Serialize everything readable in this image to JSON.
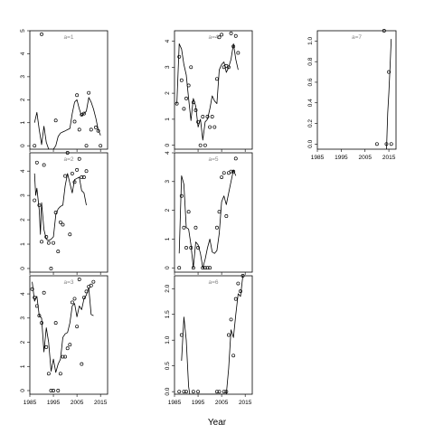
{
  "chart_data": {
    "type": "scatter",
    "xlabel": "Year",
    "xlim": [
      1985,
      2018
    ],
    "x_ticks": [
      1985,
      1995,
      2005,
      2015
    ],
    "x_tick_labels": [
      "1985",
      "1995",
      "2005",
      "2015"
    ],
    "panels": [
      {
        "label": "a=1",
        "ylim": [
          -0.15,
          5.0
        ],
        "y_ticks": [
          0,
          1,
          2,
          3,
          4,
          5
        ],
        "points": [
          [
            1987,
            0
          ],
          [
            1990,
            4.85
          ],
          [
            1996,
            1.1
          ],
          [
            2004,
            1.05
          ],
          [
            2005,
            2.2
          ],
          [
            2006,
            0.7
          ],
          [
            2007,
            1.35
          ],
          [
            2008,
            1.4
          ],
          [
            2009,
            0
          ],
          [
            2010,
            2.3
          ],
          [
            2011,
            0.7
          ],
          [
            2013,
            0.8
          ],
          [
            2014,
            0.65
          ],
          [
            2015,
            0
          ]
        ],
        "line": [
          [
            1987,
            1.0
          ],
          [
            1988,
            1.45
          ],
          [
            1989,
            0.7
          ],
          [
            1990,
            0.05
          ],
          [
            1991,
            0.85
          ],
          [
            1992,
            0.15
          ],
          [
            1993,
            -0.15
          ],
          [
            1994,
            -0.15
          ],
          [
            1995,
            -0.15
          ],
          [
            1996,
            0.0
          ],
          [
            1997,
            0.4
          ],
          [
            1998,
            0.55
          ],
          [
            1999,
            0.6
          ],
          [
            2000,
            0.65
          ],
          [
            2001,
            0.7
          ],
          [
            2002,
            0.75
          ],
          [
            2003,
            1.4
          ],
          [
            2004,
            1.9
          ],
          [
            2005,
            2.0
          ],
          [
            2006,
            1.6
          ],
          [
            2007,
            1.3
          ],
          [
            2008,
            1.4
          ],
          [
            2009,
            1.5
          ],
          [
            2010,
            2.1
          ],
          [
            2011,
            1.9
          ],
          [
            2012,
            1.6
          ],
          [
            2013,
            1.2
          ],
          [
            2014,
            0.7
          ],
          [
            2015,
            0.45
          ]
        ]
      },
      {
        "label": "a=2",
        "ylim": [
          -0.15,
          4.75
        ],
        "y_ticks": [
          0,
          1,
          2,
          3,
          4
        ],
        "points": [
          [
            1987,
            2.8
          ],
          [
            1988,
            4.35
          ],
          [
            1989,
            2.6
          ],
          [
            1990,
            1.1
          ],
          [
            1991,
            4.25
          ],
          [
            1992,
            1.3
          ],
          [
            1993,
            1.05
          ],
          [
            1994,
            0
          ],
          [
            1995,
            1.05
          ],
          [
            1996,
            2.3
          ],
          [
            1997,
            0.7
          ],
          [
            1998,
            1.9
          ],
          [
            1999,
            1.8
          ],
          [
            2000,
            3.8
          ],
          [
            2001,
            4.75
          ],
          [
            2002,
            1.4
          ],
          [
            2003,
            3.9
          ],
          [
            2004,
            3.55
          ],
          [
            2005,
            4.05
          ],
          [
            2006,
            4.5
          ],
          [
            2007,
            3.75
          ],
          [
            2008,
            3.75
          ],
          [
            2009,
            4.0
          ]
        ],
        "line": [
          [
            1987,
            3.9
          ],
          [
            1987.5,
            3.0
          ],
          [
            1988,
            3.3
          ],
          [
            1989,
            2.4
          ],
          [
            1989.5,
            1.4
          ],
          [
            1990,
            2.7
          ],
          [
            1991,
            1.6
          ],
          [
            1992,
            1.2
          ],
          [
            1993,
            1.15
          ],
          [
            1994,
            1.2
          ],
          [
            1995,
            1.3
          ],
          [
            1996,
            2.2
          ],
          [
            1997,
            2.45
          ],
          [
            1998,
            2.55
          ],
          [
            1999,
            2.6
          ],
          [
            2000,
            3.4
          ],
          [
            2001,
            3.9
          ],
          [
            2002,
            3.5
          ],
          [
            2003,
            3.1
          ],
          [
            2004,
            3.65
          ],
          [
            2005,
            3.7
          ],
          [
            2006,
            3.75
          ],
          [
            2007,
            3.2
          ],
          [
            2008,
            3.1
          ],
          [
            2009,
            2.6
          ]
        ]
      },
      {
        "label": "a=3",
        "ylim": [
          -0.15,
          4.75
        ],
        "y_ticks": [
          0,
          1,
          2,
          3,
          4
        ],
        "points": [
          [
            1986,
            4.2
          ],
          [
            1987,
            3.85
          ],
          [
            1988,
            3.5
          ],
          [
            1989,
            3.1
          ],
          [
            1990,
            2.8
          ],
          [
            1991,
            4.05
          ],
          [
            1992,
            1.8
          ],
          [
            1993,
            0.7
          ],
          [
            1994,
            0
          ],
          [
            1995,
            0
          ],
          [
            1996,
            2.8
          ],
          [
            1997,
            0
          ],
          [
            1998,
            0.7
          ],
          [
            1999,
            1.4
          ],
          [
            2000,
            1.4
          ],
          [
            2001,
            1.75
          ],
          [
            2002,
            1.9
          ],
          [
            2003,
            3.65
          ],
          [
            2004,
            3.8
          ],
          [
            2005,
            2.65
          ],
          [
            2006,
            4.6
          ],
          [
            2007,
            1.1
          ],
          [
            2008,
            3.85
          ],
          [
            2009,
            4.1
          ],
          [
            2010,
            4.3
          ],
          [
            2011,
            4.35
          ],
          [
            2012,
            4.5
          ]
        ],
        "line": [
          [
            1986,
            4.5
          ],
          [
            1987,
            3.7
          ],
          [
            1988,
            3.9
          ],
          [
            1989,
            3.1
          ],
          [
            1990,
            3.0
          ],
          [
            1991,
            1.6
          ],
          [
            1992,
            2.6
          ],
          [
            1993,
            2.0
          ],
          [
            1994,
            0.8
          ],
          [
            1995,
            1.3
          ],
          [
            1996,
            0.75
          ],
          [
            1997,
            1.1
          ],
          [
            1998,
            1.3
          ],
          [
            1999,
            2.2
          ],
          [
            2000,
            2.35
          ],
          [
            2001,
            2.4
          ],
          [
            2002,
            2.8
          ],
          [
            2003,
            3.5
          ],
          [
            2004,
            3.6
          ],
          [
            2005,
            3.05
          ],
          [
            2006,
            3.5
          ],
          [
            2007,
            3.35
          ],
          [
            2008,
            3.8
          ],
          [
            2009,
            3.95
          ],
          [
            2010,
            4.25
          ],
          [
            2011,
            3.15
          ],
          [
            2012,
            3.1
          ]
        ]
      },
      {
        "label": "a=4",
        "ylim": [
          -0.15,
          4.4
        ],
        "y_ticks": [
          0,
          1,
          2,
          3,
          4
        ],
        "points": [
          [
            1986,
            1.6
          ],
          [
            1987,
            3.4
          ],
          [
            1988,
            2.5
          ],
          [
            1989,
            1.4
          ],
          [
            1990,
            1.8
          ],
          [
            1991,
            2.3
          ],
          [
            1992,
            3.0
          ],
          [
            1993,
            1.65
          ],
          [
            1994,
            1.35
          ],
          [
            1995,
            0.9
          ],
          [
            1996,
            0
          ],
          [
            1997,
            1.1
          ],
          [
            1998,
            0
          ],
          [
            1999,
            1.1
          ],
          [
            2000,
            0.7
          ],
          [
            2001,
            1.1
          ],
          [
            2002,
            0.7
          ],
          [
            2003,
            2.55
          ],
          [
            2004,
            4.15
          ],
          [
            2005,
            4.25
          ],
          [
            2006,
            3.0
          ],
          [
            2007,
            3.05
          ],
          [
            2008,
            3.0
          ],
          [
            2009,
            4.3
          ],
          [
            2010,
            3.8
          ],
          [
            2011,
            4.2
          ],
          [
            2012,
            3.55
          ]
        ],
        "line": [
          [
            1986,
            1.6
          ],
          [
            1987,
            3.9
          ],
          [
            1988,
            3.7
          ],
          [
            1989,
            3.1
          ],
          [
            1990,
            2.7
          ],
          [
            1991,
            1.8
          ],
          [
            1992,
            0.95
          ],
          [
            1993,
            1.8
          ],
          [
            1994,
            1.5
          ],
          [
            1995,
            0.7
          ],
          [
            1996,
            1.0
          ],
          [
            1997,
            0.2
          ],
          [
            1998,
            0.9
          ],
          [
            1999,
            1.0
          ],
          [
            2000,
            1.4
          ],
          [
            2001,
            1.9
          ],
          [
            2002,
            1.7
          ],
          [
            2003,
            1.6
          ],
          [
            2004,
            2.9
          ],
          [
            2005,
            3.1
          ],
          [
            2006,
            3.2
          ],
          [
            2007,
            2.8
          ],
          [
            2008,
            3.0
          ],
          [
            2009,
            3.3
          ],
          [
            2010,
            3.9
          ],
          [
            2011,
            3.3
          ],
          [
            2012,
            2.9
          ]
        ]
      },
      {
        "label": "a=5",
        "ylim": [
          -0.15,
          4.0
        ],
        "y_ticks": [
          0,
          1,
          2,
          3,
          4
        ],
        "points": [
          [
            1987,
            0
          ],
          [
            1988,
            2.5
          ],
          [
            1989,
            1.4
          ],
          [
            1990,
            0.7
          ],
          [
            1991,
            1.95
          ],
          [
            1992,
            0.7
          ],
          [
            1993,
            0
          ],
          [
            1994,
            1.4
          ],
          [
            1995,
            0.7
          ],
          [
            1997,
            0
          ],
          [
            1998,
            0
          ],
          [
            1999,
            0
          ],
          [
            2000,
            0
          ],
          [
            2003,
            1.4
          ],
          [
            2004,
            1.95
          ],
          [
            2005,
            3.15
          ],
          [
            2006,
            3.3
          ],
          [
            2007,
            1.8
          ],
          [
            2008,
            3.3
          ],
          [
            2009,
            3.35
          ],
          [
            2010,
            3.35
          ],
          [
            2011,
            3.8
          ]
        ],
        "line": [
          [
            1987,
            0.5
          ],
          [
            1988,
            3.2
          ],
          [
            1989,
            2.9
          ],
          [
            1990,
            1.4
          ],
          [
            1991,
            1.35
          ],
          [
            1992,
            0.8
          ],
          [
            1993,
            0
          ],
          [
            1994,
            0.9
          ],
          [
            1995,
            0.8
          ],
          [
            1996,
            0.5
          ],
          [
            1997,
            0
          ],
          [
            1998,
            0.3
          ],
          [
            1999,
            0.7
          ],
          [
            2000,
            1.0
          ],
          [
            2001,
            0.55
          ],
          [
            2002,
            0.5
          ],
          [
            2003,
            0.6
          ],
          [
            2004,
            1.2
          ],
          [
            2005,
            2.3
          ],
          [
            2006,
            2.5
          ],
          [
            2007,
            2.2
          ],
          [
            2008,
            2.6
          ],
          [
            2009,
            3.0
          ],
          [
            2010,
            3.4
          ],
          [
            2011,
            3.2
          ]
        ]
      },
      {
        "label": "a=6",
        "ylim": [
          -0.05,
          2.25
        ],
        "y_ticks": [
          0.0,
          0.5,
          1.0,
          1.5,
          2.0
        ],
        "y_tick_labels": [
          "0.0",
          "0.5",
          "1.0",
          "1.5",
          "2.0"
        ],
        "points": [
          [
            1987,
            0
          ],
          [
            1988,
            1.1
          ],
          [
            1989,
            0
          ],
          [
            1990,
            0
          ],
          [
            1993,
            0
          ],
          [
            1995,
            0
          ],
          [
            2003,
            0
          ],
          [
            2004,
            0
          ],
          [
            2006,
            0
          ],
          [
            2007,
            0
          ],
          [
            2008,
            1.1
          ],
          [
            2009,
            1.4
          ],
          [
            2010,
            0.7
          ],
          [
            2011,
            1.8
          ],
          [
            2012,
            2.1
          ],
          [
            2013,
            1.95
          ],
          [
            2014,
            2.25
          ]
        ],
        "line": [
          [
            1988,
            0.6
          ],
          [
            1989,
            1.45
          ],
          [
            1990,
            1.0
          ],
          [
            1991,
            0.1
          ],
          [
            1991.5,
            -0.05
          ],
          [
            2007,
            -0.05
          ],
          [
            2008,
            0.45
          ],
          [
            2009,
            1.2
          ],
          [
            2010,
            1.05
          ],
          [
            2011,
            1.5
          ],
          [
            2012,
            1.9
          ],
          [
            2013,
            1.85
          ],
          [
            2014,
            2.25
          ]
        ]
      },
      {
        "label": "a=7",
        "ylim": [
          -0.05,
          1.1
        ],
        "y_ticks": [
          0.0,
          0.2,
          0.4,
          0.6,
          0.8,
          1.0
        ],
        "y_tick_labels": [
          "0.0",
          "0.2",
          "0.4",
          "0.6",
          "0.8",
          "1.0"
        ],
        "points": [
          [
            2010,
            0
          ],
          [
            2013,
            1.1
          ],
          [
            2014,
            0
          ],
          [
            2015,
            0.7
          ],
          [
            2016,
            0
          ]
        ],
        "line": [
          [
            2014,
            -0.05
          ],
          [
            2014.5,
            0.3
          ],
          [
            2015,
            0.5
          ],
          [
            2015.5,
            0.75
          ],
          [
            2016,
            1.02
          ]
        ]
      }
    ]
  }
}
